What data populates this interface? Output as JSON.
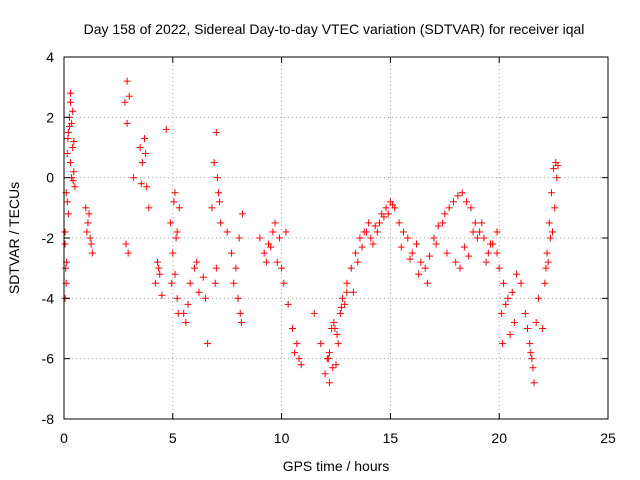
{
  "chart_data": {
    "type": "scatter",
    "title": "Day 158 of 2022, Sidereal Day-to-day VTEC variation (SDTVAR) for receiver iqal",
    "xlabel": "GPS time / hours",
    "ylabel": "SDTVAR / TECUs",
    "xlim": [
      0,
      25
    ],
    "ylim": [
      -8,
      4
    ],
    "xticks": [
      0,
      5,
      10,
      15,
      20,
      25
    ],
    "yticks": [
      -8,
      -6,
      -4,
      -2,
      0,
      2,
      4
    ],
    "grid": true,
    "marker": "+",
    "colors": {
      "series": "#ff0000",
      "axis": "#000000",
      "grid": "#a0a0a0"
    },
    "series": [
      {
        "name": "SDTVAR",
        "x": [
          0.05,
          0.1,
          0.15,
          0.2,
          0.25,
          0.3,
          0.35,
          0.4,
          0.45,
          0.5,
          0.1,
          0.2,
          0.3,
          0.4,
          0.45,
          0.15,
          0.25,
          0.35,
          0.05,
          0.12,
          0.3,
          0.42,
          0.18,
          0.05,
          0.08,
          1.0,
          1.1,
          1.2,
          1.3,
          1.05,
          1.15,
          1.25,
          2.8,
          2.9,
          3.0,
          2.85,
          2.95,
          2.9,
          3.2,
          3.5,
          3.6,
          3.7,
          3.8,
          3.9,
          3.55,
          3.75,
          4.2,
          4.3,
          4.4,
          4.5,
          4.7,
          4.35,
          4.9,
          5.0,
          5.1,
          5.2,
          5.3,
          5.05,
          5.15,
          5.25,
          4.95,
          5.1,
          5.2,
          5.5,
          5.6,
          5.8,
          6.0,
          6.2,
          6.4,
          6.6,
          5.7,
          6.1,
          6.5,
          6.8,
          6.9,
          7.0,
          7.1,
          7.2,
          6.95,
          7.05,
          7.0,
          7.15,
          7.5,
          7.7,
          7.9,
          8.0,
          8.1,
          8.2,
          7.8,
          8.05,
          8.15,
          9.0,
          9.2,
          9.4,
          9.6,
          9.8,
          10.0,
          10.2,
          9.5,
          9.7,
          10.1,
          10.3,
          9.3,
          9.9,
          10.5,
          10.7,
          10.9,
          10.6,
          10.8,
          11.5,
          11.8,
          12.0,
          12.1,
          12.2,
          12.3,
          12.4,
          12.5,
          12.6,
          12.7,
          12.8,
          12.9,
          13.0,
          12.2,
          12.35,
          12.55,
          12.75,
          12.15,
          12.45,
          13.0,
          13.2,
          13.4,
          13.6,
          13.8,
          14.0,
          14.2,
          14.4,
          14.6,
          14.8,
          15.0,
          15.2,
          13.3,
          13.7,
          14.1,
          14.5,
          14.9,
          13.5,
          13.9,
          14.3,
          14.7,
          15.1,
          15.4,
          15.6,
          15.8,
          16.0,
          16.2,
          16.4,
          16.6,
          16.8,
          17.0,
          17.2,
          17.4,
          15.5,
          15.9,
          16.3,
          16.7,
          17.1,
          17.5,
          17.7,
          17.9,
          18.1,
          18.3,
          18.5,
          18.7,
          18.9,
          19.1,
          19.3,
          19.5,
          19.7,
          19.9,
          17.6,
          18.0,
          18.4,
          18.8,
          19.2,
          19.6,
          18.2,
          18.6,
          19.0,
          19.4,
          20.0,
          20.2,
          20.4,
          20.6,
          20.8,
          20.1,
          20.3,
          20.5,
          20.7,
          19.9,
          20.15,
          21.0,
          21.2,
          21.4,
          21.5,
          21.6,
          21.8,
          21.3,
          21.45,
          21.55,
          21.7,
          22.0,
          22.1,
          22.2,
          22.3,
          22.4,
          22.5,
          22.6,
          22.7,
          22.15,
          22.35,
          22.55,
          22.65,
          22.25,
          22.45
        ],
        "y": [
          -2.2,
          -0.5,
          0.8,
          1.5,
          2.0,
          2.5,
          1.8,
          1.0,
          0.2,
          -0.3,
          -3.5,
          -1.2,
          0.5,
          2.2,
          1.2,
          -0.8,
          1.7,
          0.0,
          -4.0,
          -2.8,
          2.8,
          -0.1,
          1.3,
          -1.8,
          -3.0,
          -1.0,
          -1.5,
          -2.0,
          -2.5,
          -1.8,
          -1.2,
          -2.2,
          2.5,
          3.2,
          2.7,
          -2.2,
          -2.5,
          1.8,
          0.0,
          1.0,
          0.5,
          1.3,
          -0.3,
          -1.0,
          -0.2,
          0.8,
          -3.5,
          -2.8,
          -3.2,
          -3.9,
          1.6,
          -3.0,
          -1.5,
          -2.5,
          -3.2,
          -4.0,
          -1.0,
          -0.8,
          -2.0,
          -4.5,
          -3.5,
          -0.5,
          -1.8,
          -4.5,
          -4.8,
          -3.5,
          -3.0,
          -3.8,
          -3.3,
          -5.5,
          -4.2,
          -2.8,
          -4.0,
          -1.0,
          0.5,
          1.5,
          -0.5,
          -1.5,
          -3.5,
          0.0,
          -3.0,
          -0.8,
          -1.8,
          -2.5,
          -3.0,
          -4.0,
          -4.5,
          -1.2,
          -3.5,
          -2.0,
          -4.8,
          -2.0,
          -2.5,
          -2.2,
          -1.8,
          -2.8,
          -3.0,
          -1.8,
          -2.3,
          -1.5,
          -3.5,
          -4.2,
          -2.8,
          -2.0,
          -5.0,
          -5.5,
          -6.2,
          -5.8,
          -6.0,
          -4.5,
          -5.5,
          -6.5,
          -6.0,
          -6.8,
          -5.0,
          -4.8,
          -6.2,
          -5.5,
          -4.5,
          -4.0,
          -4.2,
          -3.8,
          -5.8,
          -6.3,
          -5.2,
          -4.3,
          -6.0,
          -5.0,
          -3.5,
          -3.0,
          -2.5,
          -2.0,
          -1.8,
          -1.5,
          -2.2,
          -1.8,
          -1.2,
          -1.0,
          -0.8,
          -1.0,
          -3.8,
          -2.3,
          -2.0,
          -1.5,
          -1.2,
          -2.8,
          -1.8,
          -1.6,
          -1.3,
          -0.9,
          -1.5,
          -1.8,
          -2.0,
          -2.5,
          -2.2,
          -2.8,
          -3.0,
          -2.6,
          -2.0,
          -1.6,
          -1.5,
          -2.3,
          -2.7,
          -3.2,
          -3.5,
          -2.2,
          -1.2,
          -1.0,
          -0.8,
          -0.6,
          -0.5,
          -0.8,
          -1.0,
          -1.5,
          -1.8,
          -2.0,
          -2.5,
          -2.2,
          -1.8,
          -2.5,
          -2.8,
          -2.3,
          -1.8,
          -1.5,
          -2.2,
          -3.0,
          -2.6,
          -2.0,
          -2.8,
          -3.0,
          -3.5,
          -4.0,
          -3.8,
          -3.2,
          -4.5,
          -4.2,
          -5.2,
          -4.8,
          -2.5,
          -5.5,
          -3.5,
          -4.5,
          -5.5,
          -6.0,
          -6.8,
          -4.0,
          -5.0,
          -5.8,
          -6.3,
          -4.8,
          -5.0,
          -3.5,
          -2.5,
          -1.5,
          -0.5,
          0.3,
          0.5,
          0.4,
          -3.0,
          -2.0,
          -1.0,
          0.0,
          -2.8,
          -1.8
        ]
      }
    ]
  }
}
